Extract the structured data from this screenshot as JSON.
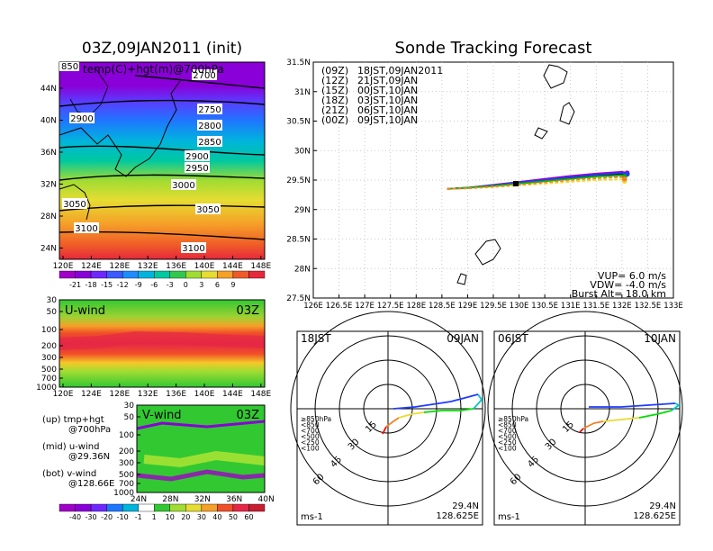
{
  "titles": {
    "left": "03Z,09JAN2011 (init)",
    "right": "Sonde Tracking Forecast"
  },
  "map_panel": {
    "label": "temp(C)+hgt(m)@700hPa",
    "corner_label": "850",
    "lat_ticks": [
      "44N",
      "40N",
      "36N",
      "32N",
      "28N",
      "24N"
    ],
    "lon_ticks": [
      "120E",
      "124E",
      "128E",
      "132E",
      "136E",
      "140E",
      "144E",
      "148E"
    ],
    "contours": [
      "2700",
      "2750",
      "2800",
      "2850",
      "2900",
      "2900",
      "2950",
      "3000",
      "3050",
      "3050",
      "3100",
      "3100"
    ],
    "colorbar_ticks": [
      "-21",
      "-18",
      "-15",
      "-12",
      "-9",
      "-6",
      "-3",
      "0",
      "3",
      "6",
      "9"
    ]
  },
  "uwind_panel": {
    "label": "U-wind",
    "time": "03Z",
    "p_ticks": [
      "30",
      "50",
      "100",
      "200",
      "300",
      "500",
      "700",
      "1000"
    ],
    "lon_ticks": [
      "120E",
      "124E",
      "128E",
      "132E",
      "136E",
      "140E",
      "144E",
      "148E"
    ]
  },
  "vwind_panel": {
    "label": "V-wind",
    "time": "03Z",
    "p_ticks": [
      "30",
      "50",
      "100",
      "200",
      "300",
      "500",
      "700",
      "1000"
    ],
    "lat_ticks": [
      "24N",
      "28N",
      "32N",
      "36N",
      "40N"
    ],
    "colorbar_ticks": [
      "-40",
      "-30",
      "-20",
      "-10",
      "-1",
      "1",
      "10",
      "20",
      "30",
      "40",
      "50",
      "60"
    ]
  },
  "legend_notes": [
    {
      "line1": "(up) tmp+hgt",
      "line2": "@700hPa"
    },
    {
      "line1": "(mid) u-wind",
      "line2": "@29.36N"
    },
    {
      "line1": "(bot) v-wind",
      "line2": "@128.66E"
    }
  ],
  "track_panel": {
    "lat_ticks": [
      "31.5N",
      "31N",
      "30.5N",
      "30N",
      "29.5N",
      "29N",
      "28.5N",
      "28N",
      "27.5N"
    ],
    "lon_ticks": [
      "126E",
      "126.5E",
      "127E",
      "127.5E",
      "128E",
      "128.5E",
      "129E",
      "129.5E",
      "130E",
      "130.5E",
      "131E",
      "131.5E",
      "132E",
      "132.5E",
      "133E"
    ],
    "legend": [
      {
        "code": "(09Z)",
        "text": "18JST,09JAN2011",
        "color": "#000000"
      },
      {
        "code": "(12Z)",
        "text": "21JST,09JAN",
        "color": "#a000c8"
      },
      {
        "code": "(15Z)",
        "text": "00JST,10JAN",
        "color": "#1e3cff"
      },
      {
        "code": "(18Z)",
        "text": "03JST,10JAN",
        "color": "#00b400"
      },
      {
        "code": "(21Z)",
        "text": "06JST,10JAN",
        "color": "#e6dc32"
      },
      {
        "code": "(00Z)",
        "text": "09JST,10JAN",
        "color": "#f08228"
      }
    ],
    "params": [
      "VUP= 6.0 m/s",
      "VDW= -4.0 m/s",
      "Burst Alt= 18.0 km"
    ]
  },
  "hodo_left": {
    "time": "18JST",
    "date": "09JAN",
    "rings": [
      "15",
      "30",
      "45",
      "60"
    ],
    "units": "ms-1",
    "lat": "29.4N",
    "lon": "128.625E",
    "levels": [
      {
        "text": "≥850hPa",
        "color": "#ff0000"
      },
      {
        "text": "<850",
        "color": "#f08228"
      },
      {
        "text": "<700",
        "color": "#e6dc32"
      },
      {
        "text": "<500",
        "color": "#00dc00"
      },
      {
        "text": "<250",
        "color": "#00c8c8"
      },
      {
        "text": "<100",
        "color": "#1e3cff"
      }
    ]
  },
  "hodo_right": {
    "time": "06JST",
    "date": "10JAN",
    "rings": [
      "15",
      "30",
      "45",
      "60"
    ],
    "units": "ms-1",
    "lat": "29.4N",
    "lon": "128.625E",
    "levels": [
      {
        "text": "≥850hPa",
        "color": "#ff0000"
      },
      {
        "text": "<850",
        "color": "#f08228"
      },
      {
        "text": "<700",
        "color": "#e6dc32"
      },
      {
        "text": "<500",
        "color": "#00dc00"
      },
      {
        "text": "<250",
        "color": "#00c8c8"
      },
      {
        "text": "<100",
        "color": "#1e3cff"
      }
    ]
  },
  "chart_data": [
    {
      "type": "line",
      "title": "Sonde Tracking Forecast",
      "xlabel": "",
      "ylabel": "",
      "xlim": [
        126,
        133
      ],
      "ylim": [
        27.5,
        31.5
      ],
      "grid": true,
      "legend_position": "top-left",
      "series": [
        {
          "name": "(09Z) 18JST,09JAN2011",
          "color": "#000000",
          "x": [
            128.6,
            129.0,
            129.5,
            130.0,
            130.5,
            131.0,
            131.5,
            132.0,
            132.1
          ],
          "y": [
            29.35,
            29.37,
            29.41,
            29.45,
            29.49,
            29.54,
            29.58,
            29.61,
            29.6
          ]
        },
        {
          "name": "(12Z) 21JST,09JAN",
          "color": "#a000c8",
          "x": [
            128.6,
            129.0,
            129.5,
            130.0,
            130.5,
            131.0,
            131.5,
            132.0,
            132.1
          ],
          "y": [
            29.35,
            29.37,
            29.42,
            29.47,
            29.52,
            29.57,
            29.61,
            29.64,
            29.62
          ]
        },
        {
          "name": "(15Z) 00JST,10JAN",
          "color": "#1e3cff",
          "x": [
            128.6,
            129.0,
            129.5,
            130.0,
            130.5,
            131.0,
            131.5,
            132.0,
            132.1
          ],
          "y": [
            29.35,
            29.37,
            29.41,
            29.46,
            29.5,
            29.55,
            29.59,
            29.62,
            29.6
          ]
        },
        {
          "name": "(18Z) 03JST,10JAN",
          "color": "#00b400",
          "x": [
            128.6,
            129.0,
            129.5,
            130.0,
            130.5,
            131.0,
            131.5,
            132.0,
            132.05
          ],
          "y": [
            29.35,
            29.37,
            29.4,
            29.44,
            29.48,
            29.52,
            29.56,
            29.58,
            29.56
          ]
        },
        {
          "name": "(21Z) 06JST,10JAN",
          "color": "#e6dc32",
          "x": [
            128.6,
            129.0,
            129.5,
            130.0,
            130.5,
            131.0,
            131.5,
            132.0,
            132.05
          ],
          "y": [
            29.35,
            29.36,
            29.38,
            29.41,
            29.44,
            29.47,
            29.5,
            29.51,
            29.48
          ]
        },
        {
          "name": "(00Z) 09JST,10JAN",
          "color": "#f08228",
          "x": [
            128.6,
            129.0,
            129.5,
            130.0,
            130.5,
            131.0,
            131.5,
            132.0,
            132.05
          ],
          "y": [
            29.35,
            29.36,
            29.39,
            29.42,
            29.46,
            29.5,
            29.53,
            29.55,
            29.52
          ]
        }
      ],
      "annotations": [
        "VUP= 6.0 m/s",
        "VDW= -4.0 m/s",
        "Burst Alt= 18.0 km"
      ]
    }
  ]
}
